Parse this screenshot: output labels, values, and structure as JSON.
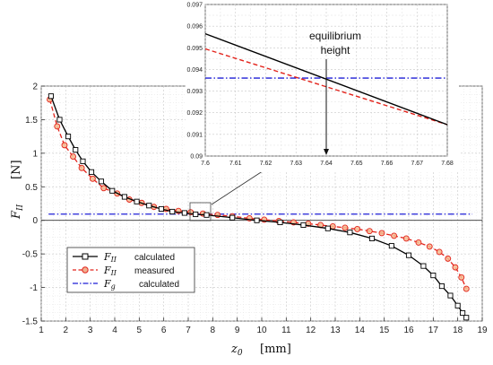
{
  "chart_data": [
    {
      "type": "line",
      "ylabel": "F_II",
      "ylabel_symbol": "F",
      "ylabel_subscript": "II",
      "xlabel_symbol": "z",
      "xlabel_subscript": "0",
      "xlabel_unit": "[mm]",
      "ylabel_unit": "[N]",
      "xlim": [
        1,
        19
      ],
      "ylim": [
        -1.5,
        2
      ],
      "xticks": [
        "1",
        "2",
        "3",
        "4",
        "5",
        "6",
        "7",
        "8",
        "9",
        "10",
        "11",
        "12",
        "13",
        "14",
        "15",
        "16",
        "17",
        "18",
        "19"
      ],
      "yticks": [
        "-1.5",
        "-1",
        "-0.5",
        "0",
        "0.5",
        "1",
        "1.5",
        "2"
      ],
      "grid": true,
      "legend_position": "bottom-left",
      "series": [
        {
          "name": "calculated",
          "legend_symbol": "F",
          "legend_subscript": "II",
          "style": "solid",
          "marker": "square",
          "color": "#000000",
          "x": [
            1.4,
            1.75,
            2.1,
            2.4,
            2.7,
            3.05,
            3.45,
            3.9,
            4.4,
            4.9,
            5.4,
            5.9,
            6.35,
            6.85,
            7.3,
            7.75,
            8.8,
            9.8,
            10.75,
            11.7,
            12.7,
            13.6,
            14.5,
            15.3,
            16.0,
            16.6,
            17.0,
            17.35,
            17.7,
            18.0,
            18.2,
            18.35
          ],
          "y": [
            1.85,
            1.5,
            1.25,
            1.05,
            0.88,
            0.72,
            0.58,
            0.44,
            0.35,
            0.28,
            0.22,
            0.17,
            0.13,
            0.11,
            0.09,
            0.08,
            0.04,
            0.0,
            -0.03,
            -0.07,
            -0.12,
            -0.18,
            -0.27,
            -0.38,
            -0.52,
            -0.68,
            -0.82,
            -0.98,
            -1.12,
            -1.27,
            -1.38,
            -1.45
          ]
        },
        {
          "name": "measured",
          "legend_symbol": "F",
          "legend_subscript": "II",
          "style": "dashed",
          "marker": "circle",
          "color": "#e3231b",
          "x": [
            1.35,
            1.65,
            1.95,
            2.3,
            2.65,
            3.1,
            3.55,
            4.1,
            4.6,
            5.1,
            5.6,
            6.1,
            6.6,
            7.1,
            7.6,
            8.2,
            8.8,
            9.5,
            10.1,
            10.7,
            11.3,
            11.9,
            12.4,
            12.9,
            13.4,
            13.9,
            14.4,
            14.9,
            15.4,
            15.9,
            16.4,
            16.85,
            17.25,
            17.6,
            17.9,
            18.15,
            18.35
          ],
          "y": [
            1.8,
            1.4,
            1.12,
            0.95,
            0.78,
            0.62,
            0.48,
            0.4,
            0.31,
            0.26,
            0.2,
            0.17,
            0.14,
            0.12,
            0.1,
            0.08,
            0.06,
            0.03,
            0.01,
            -0.01,
            -0.03,
            -0.05,
            -0.07,
            -0.09,
            -0.11,
            -0.13,
            -0.16,
            -0.19,
            -0.23,
            -0.27,
            -0.33,
            -0.39,
            -0.47,
            -0.57,
            -0.7,
            -0.85,
            -1.02
          ]
        },
        {
          "name": "calculated",
          "legend_symbol": "F",
          "legend_subscript": "g",
          "style": "dashdot",
          "marker": "none",
          "color": "#1f1fd6",
          "x": [
            1.3,
            18.6
          ],
          "y": [
            0.0935,
            0.0935
          ]
        }
      ]
    },
    {
      "type": "line",
      "xlim": [
        7.6,
        7.68
      ],
      "ylim": [
        0.09,
        0.097
      ],
      "xticks": [
        "7.6",
        "7.61",
        "7.62",
        "7.63",
        "7.64",
        "7.65",
        "7.66",
        "7.67",
        "7.68"
      ],
      "yticks": [
        "0.09",
        "0.091",
        "0.092",
        "0.093",
        "0.094",
        "0.095",
        "0.096",
        "0.097"
      ],
      "grid": true,
      "annotation": {
        "text_line1": "equilibrium",
        "text_line2": "height",
        "x": 7.64
      },
      "series": [
        {
          "name": "",
          "style": "solid",
          "color": "#000000",
          "x": [
            7.6,
            7.68
          ],
          "y": [
            0.09565,
            0.09145
          ]
        },
        {
          "name": "",
          "style": "dashed",
          "color": "#e3231b",
          "x": [
            7.6,
            7.68
          ],
          "y": [
            0.09495,
            0.09145
          ]
        },
        {
          "name": "",
          "style": "dashdot",
          "color": "#1f1fd6",
          "x": [
            7.6,
            7.68
          ],
          "y": [
            0.0936,
            0.0936
          ]
        }
      ]
    }
  ]
}
